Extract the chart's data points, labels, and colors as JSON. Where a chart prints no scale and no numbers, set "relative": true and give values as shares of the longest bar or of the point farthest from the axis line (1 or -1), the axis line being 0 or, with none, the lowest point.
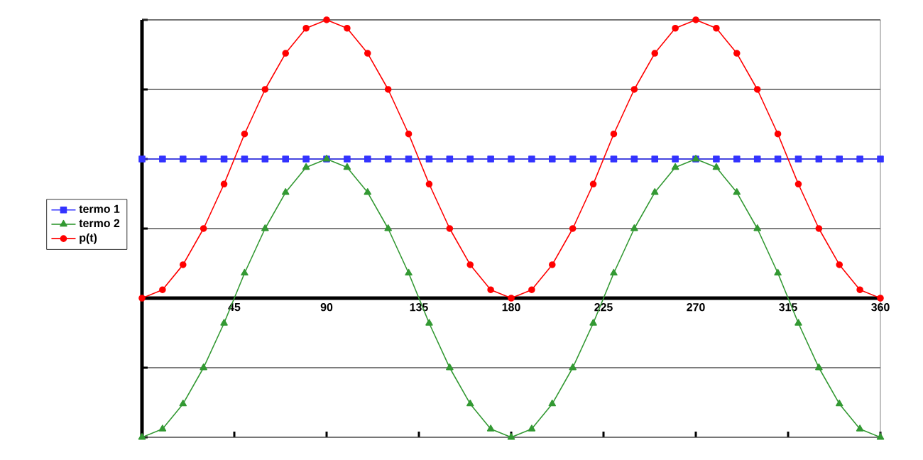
{
  "chart_data": {
    "type": "line",
    "relative": true,
    "x": [
      0,
      10,
      20,
      30,
      40,
      50,
      60,
      70,
      80,
      90,
      100,
      110,
      120,
      130,
      140,
      150,
      160,
      170,
      180,
      190,
      200,
      210,
      220,
      230,
      240,
      250,
      260,
      270,
      280,
      290,
      300,
      310,
      320,
      330,
      340,
      350,
      360
    ],
    "xlim": [
      0,
      360
    ],
    "xticks": [
      45,
      90,
      135,
      180,
      225,
      270,
      315,
      360
    ],
    "grid": "y",
    "legend": "left",
    "line_style": "solid",
    "series": [
      {
        "name": "termo 1",
        "color": "#3333ff",
        "marker": "square",
        "values": [
          0.5,
          0.5,
          0.5,
          0.5,
          0.5,
          0.5,
          0.5,
          0.5,
          0.5,
          0.5,
          0.5,
          0.5,
          0.5,
          0.5,
          0.5,
          0.5,
          0.5,
          0.5,
          0.5,
          0.5,
          0.5,
          0.5,
          0.5,
          0.5,
          0.5,
          0.5,
          0.5,
          0.5,
          0.5,
          0.5,
          0.5,
          0.5,
          0.5,
          0.5,
          0.5,
          0.5,
          0.5
        ]
      },
      {
        "name": "termo 2",
        "color": "#339933",
        "marker": "triangle",
        "values": [
          -0.5,
          -0.47,
          -0.38,
          -0.25,
          -0.09,
          0.09,
          0.25,
          0.38,
          0.47,
          0.5,
          0.47,
          0.38,
          0.25,
          0.09,
          -0.09,
          -0.25,
          -0.38,
          -0.47,
          -0.5,
          -0.47,
          -0.38,
          -0.25,
          -0.09,
          0.09,
          0.25,
          0.38,
          0.47,
          0.5,
          0.47,
          0.38,
          0.25,
          0.09,
          -0.09,
          -0.25,
          -0.38,
          -0.47,
          -0.5
        ]
      },
      {
        "name": "p(t)",
        "color": "#ff0000",
        "marker": "circle",
        "values": [
          0,
          0.03,
          0.12,
          0.25,
          0.41,
          0.59,
          0.75,
          0.88,
          0.97,
          1,
          0.97,
          0.88,
          0.75,
          0.59,
          0.41,
          0.25,
          0.12,
          0.03,
          0,
          0.03,
          0.12,
          0.25,
          0.41,
          0.59,
          0.75,
          0.88,
          0.97,
          1,
          0.97,
          0.88,
          0.75,
          0.59,
          0.41,
          0.25,
          0.12,
          0.03,
          0
        ]
      }
    ]
  }
}
